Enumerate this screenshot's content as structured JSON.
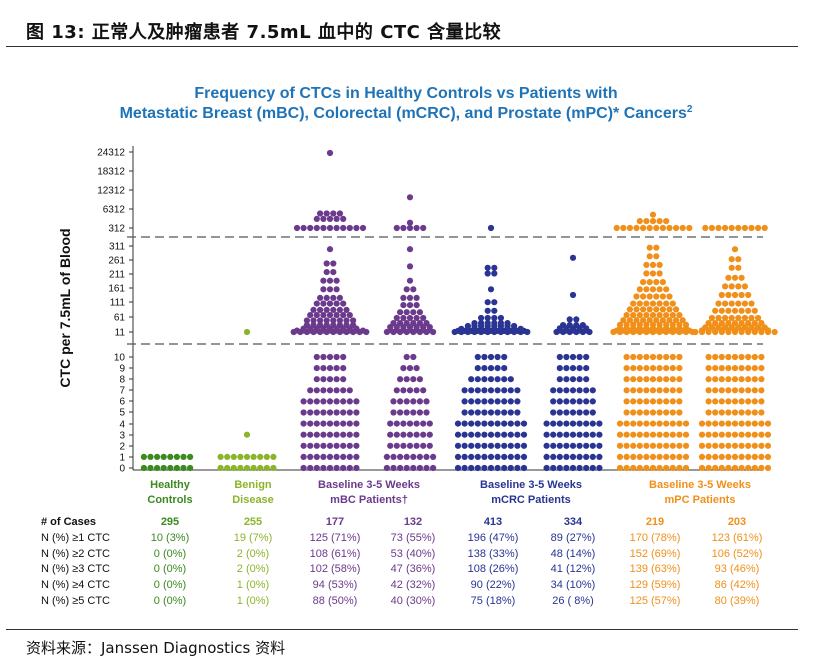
{
  "figure": {
    "caption": "图 13: 正常人及肿瘤患者 7.5mL 血中的 CTC 含量比较",
    "source": "资料来源：Janssen Diagnostics 资料"
  },
  "chart_data": {
    "type": "scatter",
    "title_line1": "Frequency of CTCs in Healthy Controls vs Patients with",
    "title_line2": "Metastatic Breast (mBC), Colorectal (mCRC), and Prostate (mPC)* Cancers",
    "title_sup": "2",
    "ylabel": "CTC per 7.5mL of Blood",
    "y_segments": [
      {
        "name": "high",
        "ticks": [
          "24312",
          "18312",
          "12312",
          "6312",
          "312"
        ],
        "tick_values": [
          24312,
          18312,
          12312,
          6312,
          312
        ],
        "ylim": [
          0,
          26000
        ]
      },
      {
        "name": "mid",
        "ticks": [
          "311",
          "261",
          "211",
          "161",
          "111",
          "61",
          "11"
        ],
        "tick_values": [
          311,
          261,
          211,
          161,
          111,
          61,
          11
        ],
        "ylim": [
          11,
          311
        ]
      },
      {
        "name": "low",
        "ticks": [
          "10",
          "9",
          "8",
          "7",
          "6",
          "5",
          "4",
          "3",
          "2",
          "1",
          "0"
        ],
        "tick_values": [
          10,
          9,
          8,
          7,
          6,
          5,
          4,
          3,
          2,
          1,
          0
        ],
        "ylim": [
          0,
          10
        ]
      }
    ],
    "groups": [
      {
        "label_line1": "Healthy",
        "label_line2": "Controls",
        "color": "#3a8a1e",
        "columns": [
          {
            "id": "hc",
            "cases": 295,
            "low": [
              [
                0,
                8
              ],
              [
                1,
                8
              ]
            ],
            "mid": [],
            "high": []
          }
        ]
      },
      {
        "label_line1": "Benign",
        "label_line2": "Disease",
        "color": "#8cb42a",
        "columns": [
          {
            "id": "bd",
            "cases": 255,
            "low": [
              [
                0,
                9
              ],
              [
                1,
                9
              ],
              [
                3,
                1
              ]
            ],
            "mid": [
              [
                11,
                1
              ]
            ],
            "high": []
          }
        ]
      },
      {
        "label_line1": "Baseline 3-5 Weeks",
        "label_line2": "mBC Patients†",
        "color": "#6b3a8c",
        "columns": [
          {
            "id": "mbc_b",
            "cases": 177,
            "low": [
              [
                0,
                9
              ],
              [
                1,
                9
              ],
              [
                2,
                9
              ],
              [
                3,
                9
              ],
              [
                4,
                9
              ],
              [
                5,
                9
              ],
              [
                6,
                9
              ],
              [
                7,
                7
              ],
              [
                8,
                5
              ],
              [
                9,
                5
              ],
              [
                10,
                5
              ]
            ],
            "mid": [
              [
                11,
                12
              ],
              [
                16,
                11
              ],
              [
                23,
                9
              ],
              [
                35,
                8
              ],
              [
                51,
                8
              ],
              [
                70,
                7
              ],
              [
                88,
                6
              ],
              [
                110,
                5
              ],
              [
                130,
                4
              ],
              [
                160,
                3
              ],
              [
                190,
                3
              ],
              [
                220,
                2
              ],
              [
                250,
                2
              ],
              [
                300,
                1
              ]
            ],
            "high": [
              [
                312,
                11
              ],
              [
                3200,
                5
              ],
              [
                4900,
                4
              ],
              [
                24000,
                1
              ]
            ]
          },
          {
            "id": "mbc_w",
            "cases": 132,
            "low": [
              [
                0,
                8
              ],
              [
                1,
                8
              ],
              [
                2,
                7
              ],
              [
                3,
                7
              ],
              [
                4,
                7
              ],
              [
                5,
                6
              ],
              [
                6,
                6
              ],
              [
                7,
                5
              ],
              [
                8,
                4
              ],
              [
                9,
                3
              ],
              [
                10,
                2
              ]
            ],
            "mid": [
              [
                11,
                8
              ],
              [
                17,
                7
              ],
              [
                28,
                7
              ],
              [
                42,
                6
              ],
              [
                60,
                5
              ],
              [
                80,
                4
              ],
              [
                105,
                3
              ],
              [
                130,
                3
              ],
              [
                160,
                2
              ],
              [
                190,
                1
              ],
              [
                240,
                1
              ],
              [
                300,
                1
              ]
            ],
            "high": [
              [
                312,
                5
              ],
              [
                2000,
                1
              ],
              [
                10000,
                1
              ]
            ]
          }
        ]
      },
      {
        "label_line1": "Baseline 3-5 Weeks",
        "label_line2": "mCRC Patients",
        "color": "#2a3493",
        "columns": [
          {
            "id": "mcrc_b",
            "cases": 413,
            "low": [
              [
                0,
                11
              ],
              [
                1,
                11
              ],
              [
                2,
                11
              ],
              [
                3,
                11
              ],
              [
                4,
                11
              ],
              [
                5,
                9
              ],
              [
                6,
                9
              ],
              [
                7,
                9
              ],
              [
                8,
                7
              ],
              [
                9,
                5
              ],
              [
                10,
                5
              ]
            ],
            "mid": [
              [
                11,
                12
              ],
              [
                15,
                11
              ],
              [
                22,
                10
              ],
              [
                32,
                8
              ],
              [
                42,
                6
              ],
              [
                60,
                4
              ],
              [
                85,
                2
              ],
              [
                115,
                2
              ],
              [
                160,
                1
              ],
              [
                215,
                2
              ],
              [
                235,
                2
              ]
            ],
            "high": [
              [
                312,
                1
              ]
            ]
          },
          {
            "id": "mcrc_w",
            "cases": 334,
            "low": [
              [
                0,
                9
              ],
              [
                1,
                9
              ],
              [
                2,
                9
              ],
              [
                3,
                9
              ],
              [
                4,
                9
              ],
              [
                5,
                7
              ],
              [
                6,
                7
              ],
              [
                7,
                7
              ],
              [
                8,
                5
              ],
              [
                9,
                5
              ],
              [
                10,
                5
              ]
            ],
            "mid": [
              [
                11,
                6
              ],
              [
                16,
                5
              ],
              [
                24,
                5
              ],
              [
                35,
                4
              ],
              [
                55,
                2
              ],
              [
                140,
                1
              ],
              [
                270,
                1
              ]
            ],
            "high": []
          }
        ]
      },
      {
        "label_line1": "Baseline 3-5 Weeks",
        "label_line2": "mPC Patients",
        "color": "#f0901a",
        "columns": [
          {
            "id": "mpc_b",
            "cases": 219,
            "low": [
              [
                0,
                11
              ],
              [
                1,
                11
              ],
              [
                2,
                11
              ],
              [
                3,
                11
              ],
              [
                4,
                11
              ],
              [
                5,
                9
              ],
              [
                6,
                9
              ],
              [
                7,
                9
              ],
              [
                8,
                9
              ],
              [
                9,
                9
              ],
              [
                10,
                9
              ]
            ],
            "mid": [
              [
                11,
                13
              ],
              [
                16,
                12
              ],
              [
                24,
                11
              ],
              [
                36,
                11
              ],
              [
                52,
                10
              ],
              [
                70,
                9
              ],
              [
                90,
                8
              ],
              [
                110,
                7
              ],
              [
                135,
                6
              ],
              [
                160,
                5
              ],
              [
                185,
                4
              ],
              [
                215,
                3
              ],
              [
                245,
                3
              ],
              [
                275,
                2
              ],
              [
                305,
                2
              ]
            ],
            "high": [
              [
                312,
                12
              ],
              [
                2500,
                5
              ],
              [
                4500,
                1
              ]
            ]
          },
          {
            "id": "mpc_w",
            "cases": 203,
            "low": [
              [
                0,
                11
              ],
              [
                1,
                11
              ],
              [
                2,
                11
              ],
              [
                3,
                11
              ],
              [
                4,
                11
              ],
              [
                5,
                9
              ],
              [
                6,
                9
              ],
              [
                7,
                9
              ],
              [
                8,
                9
              ],
              [
                9,
                9
              ],
              [
                10,
                9
              ]
            ],
            "mid": [
              [
                11,
                13
              ],
              [
                17,
                11
              ],
              [
                27,
                10
              ],
              [
                42,
                9
              ],
              [
                60,
                8
              ],
              [
                85,
                7
              ],
              [
                110,
                6
              ],
              [
                140,
                5
              ],
              [
                170,
                4
              ],
              [
                200,
                3
              ],
              [
                235,
                2
              ],
              [
                265,
                2
              ],
              [
                300,
                1
              ]
            ],
            "high": [
              [
                312,
                10
              ]
            ]
          }
        ]
      }
    ],
    "table": {
      "headers": [
        "# of Cases",
        "N (%) ≥1 CTC",
        "N (%) ≥2 CTC",
        "N (%) ≥3 CTC",
        "N (%) ≥4 CTC",
        "N (%) ≥5 CTC"
      ],
      "columns": [
        [
          "295",
          "10 (3%)",
          "0 (0%)",
          "0 (0%)",
          "0 (0%)",
          "0 (0%)"
        ],
        [
          "255",
          "19 (7%)",
          "2 (0%)",
          "2 (0%)",
          "1 (0%)",
          "1 (0%)"
        ],
        [
          "177",
          "125 (71%)",
          "108 (61%)",
          "102 (58%)",
          "94 (53%)",
          "88 (50%)"
        ],
        [
          "132",
          "73 (55%)",
          "53 (40%)",
          "47 (36%)",
          "42 (32%)",
          "40 (30%)"
        ],
        [
          "413",
          "196 (47%)",
          "138 (33%)",
          "108 (26%)",
          "90 (22%)",
          "75 (18%)"
        ],
        [
          "334",
          "89 (27%)",
          "48 (14%)",
          "41 (12%)",
          "34 (10%)",
          "26 ( 8%)"
        ],
        [
          "219",
          "170 (78%)",
          "152 (69%)",
          "139 (63%)",
          "129 (59%)",
          "125 (57%)"
        ],
        [
          "203",
          "123 (61%)",
          "106 (52%)",
          "93 (46%)",
          "86 (42%)",
          "80 (39%)"
        ]
      ]
    }
  }
}
